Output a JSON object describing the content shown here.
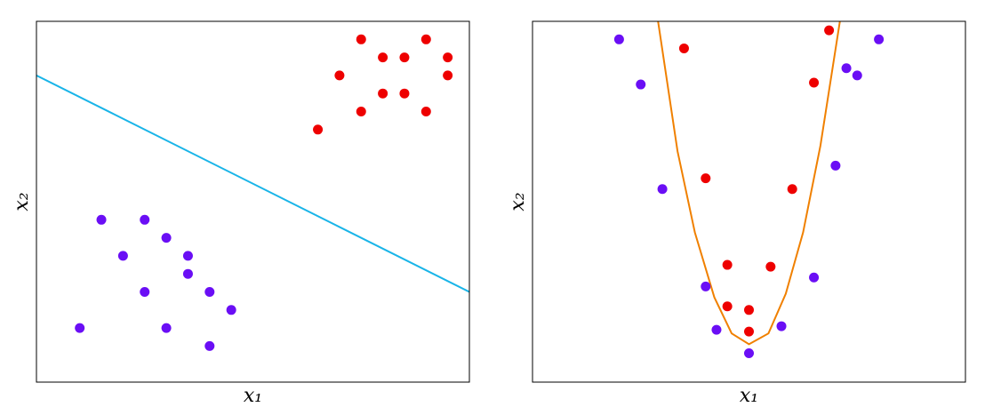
{
  "chart_data": [
    {
      "type": "scatter",
      "xlabel": "x₁",
      "ylabel": "x₂",
      "xlim": [
        0,
        20
      ],
      "ylim": [
        0,
        20
      ],
      "series": [
        {
          "color": "#6a0ef5",
          "x": [
            3,
            5,
            6,
            4,
            7,
            7,
            5,
            8,
            9,
            2,
            6,
            8
          ],
          "values": [
            9,
            9,
            8,
            7,
            7,
            6,
            5,
            5,
            4,
            3,
            3,
            2
          ]
        },
        {
          "color": "#ee0000",
          "x": [
            15,
            18,
            16,
            17,
            19,
            14,
            19,
            16,
            17,
            15,
            18,
            13
          ],
          "values": [
            19,
            19,
            18,
            18,
            18,
            17,
            17,
            16,
            16,
            15,
            15,
            14
          ]
        }
      ],
      "lines": [
        {
          "color": "#18b4e8",
          "x": [
            0,
            20
          ],
          "values": [
            17,
            5
          ]
        }
      ]
    },
    {
      "type": "scatter",
      "xlabel": "x₁",
      "ylabel": "x₂",
      "xlim": [
        -10,
        10
      ],
      "ylim": [
        0,
        20
      ],
      "series": [
        {
          "color": "#6a0ef5",
          "x": [
            -6,
            -5,
            -4,
            -2,
            -1.5,
            0,
            1.5,
            3,
            4,
            4.5,
            5,
            6
          ],
          "values": [
            19,
            16.5,
            10.7,
            5.3,
            2.9,
            1.6,
            3.1,
            5.8,
            12,
            17.4,
            17,
            19
          ]
        },
        {
          "color": "#ee0000",
          "x": [
            -3,
            -2,
            -1,
            -1,
            0,
            0,
            1,
            2,
            3,
            3.7
          ],
          "values": [
            18.5,
            11.3,
            6.5,
            4.2,
            4,
            2.8,
            6.4,
            10.7,
            16.6,
            19.5
          ]
        }
      ],
      "lines": [
        {
          "color": "#f08000",
          "x": [
            -4.2,
            -3.3,
            -2.5,
            -1.6,
            -0.8,
            0,
            0.9,
            1.7,
            2.5,
            3.3,
            4.2
          ],
          "values": [
            20,
            12.8,
            8.3,
            4.7,
            2.7,
            2.1,
            2.7,
            4.9,
            8.3,
            13.1,
            20
          ]
        }
      ]
    }
  ]
}
